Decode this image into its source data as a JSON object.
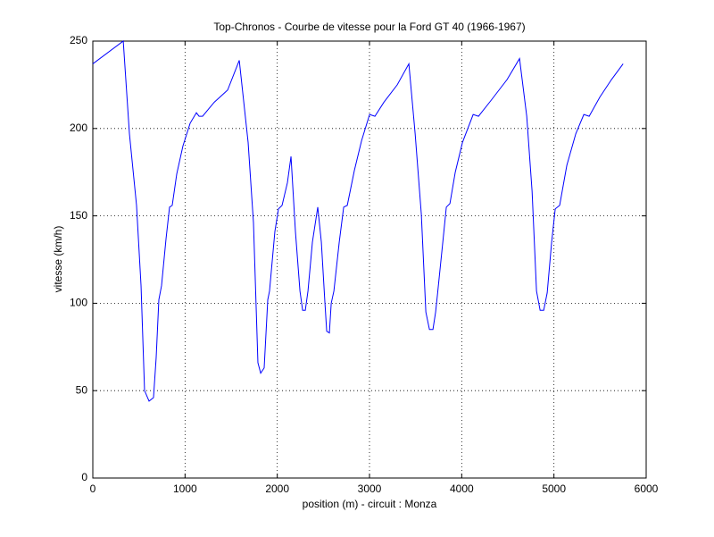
{
  "chart_data": {
    "type": "line",
    "title": "Top-Chronos - Courbe de vitesse pour la Ford GT 40 (1966-1967)",
    "x_label": "position (m) - circuit : Monza",
    "y_label": "vitesse (km/h)",
    "x": [
      0,
      330,
      397,
      474,
      523,
      561,
      610,
      658,
      687,
      716,
      745,
      794,
      832,
      861,
      910,
      977,
      1055,
      1123,
      1152,
      1190,
      1316,
      1462,
      1588,
      1684,
      1742,
      1790,
      1820,
      1858,
      1897,
      1916,
      1974,
      2013,
      2052,
      2110,
      2149,
      2197,
      2246,
      2275,
      2304,
      2333,
      2381,
      2439,
      2478,
      2517,
      2536,
      2565,
      2585,
      2614,
      2672,
      2720,
      2759,
      2836,
      2914,
      3001,
      3059,
      3156,
      3301,
      3427,
      3495,
      3562,
      3611,
      3650,
      3688,
      3717,
      3737,
      3795,
      3833,
      3872,
      3930,
      4008,
      4124,
      4182,
      4317,
      4492,
      4627,
      4705,
      4763,
      4811,
      4850,
      4889,
      4927,
      4975,
      5014,
      5062,
      5140,
      5237,
      5324,
      5382,
      5498,
      5624,
      5750
    ],
    "values": [
      237,
      250,
      197,
      156,
      110,
      50,
      44,
      46,
      69,
      102,
      110,
      137,
      155,
      156,
      174,
      190,
      203,
      209,
      207,
      207,
      215,
      222,
      239,
      192,
      146,
      66,
      60,
      63,
      102,
      107,
      141,
      154,
      156,
      169,
      184,
      141,
      107,
      96,
      96,
      107,
      135,
      155,
      135,
      100,
      84,
      83,
      100,
      107,
      135,
      155,
      156,
      176,
      193,
      208,
      207,
      215,
      225,
      237,
      197,
      151,
      95,
      85,
      85,
      95,
      105,
      135,
      155,
      157,
      175,
      192,
      208,
      207,
      216,
      228,
      240,
      207,
      164,
      107,
      96,
      96,
      106,
      135,
      154,
      156,
      179,
      197,
      208,
      207,
      218,
      228,
      237
    ],
    "color": "#0000ff",
    "xlim": [
      0,
      6000
    ],
    "xticks": [
      0,
      1000,
      2000,
      3000,
      4000,
      5000,
      6000
    ],
    "ylim": [
      0,
      250
    ],
    "yticks": [
      0,
      50,
      100,
      150,
      200,
      250
    ],
    "grid": true
  }
}
